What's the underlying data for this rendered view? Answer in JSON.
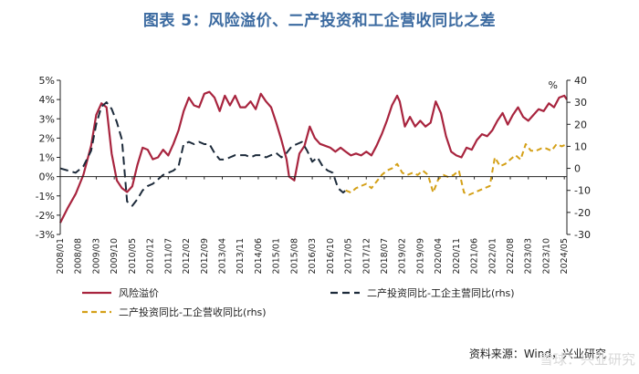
{
  "title": "图表 5：风险溢价、二产投资和工企营收同比之差",
  "source": "资料来源：Wind，兴业研究",
  "watermark": "雪球：兴业研究",
  "chart_data": {
    "type": "line",
    "left_ylim": [
      -3,
      5
    ],
    "left_ticks": [
      "-3%",
      "-2%",
      "-1%",
      "0%",
      "1%",
      "2%",
      "3%",
      "4%",
      "5%"
    ],
    "right_ylim": [
      -30,
      40
    ],
    "right_ticks": [
      "-30",
      "-20",
      "-10",
      "0",
      "10",
      "20",
      "30",
      "40"
    ],
    "x_tick_labels": [
      "2008/01",
      "2008/08",
      "2009/03",
      "2009/10",
      "2010/05",
      "2010/12",
      "2011/07",
      "2012/02",
      "2012/09",
      "2013/04",
      "2013/11",
      "2014/06",
      "2015/01",
      "2015/08",
      "2016/03",
      "2016/10",
      "2017/05",
      "2017/12",
      "2018/07",
      "2019/02",
      "2019/09",
      "2020/04",
      "2020/11",
      "2021/06",
      "2022/01",
      "2022/08",
      "2023/03",
      "2023/10",
      "2024/05"
    ],
    "x_start": "2008/01",
    "x_end": "2024/06",
    "annotation": "%",
    "grid": false,
    "legend": "bottom",
    "series": [
      {
        "name": "风险溢价",
        "axis": "left",
        "color": "#a8243e",
        "style": "solid",
        "points": [
          [
            "2008/01",
            -2.4
          ],
          [
            "2008/04",
            -1.6
          ],
          [
            "2008/07",
            -0.9
          ],
          [
            "2008/10",
            0.1
          ],
          [
            "2009/01",
            1.6
          ],
          [
            "2009/03",
            3.2
          ],
          [
            "2009/05",
            3.8
          ],
          [
            "2009/07",
            3.6
          ],
          [
            "2009/09",
            1.2
          ],
          [
            "2009/11",
            -0.2
          ],
          [
            "2010/01",
            -0.6
          ],
          [
            "2010/03",
            -0.8
          ],
          [
            "2010/05",
            -0.5
          ],
          [
            "2010/07",
            0.6
          ],
          [
            "2010/09",
            1.5
          ],
          [
            "2010/11",
            1.4
          ],
          [
            "2011/01",
            0.9
          ],
          [
            "2011/03",
            1.0
          ],
          [
            "2011/05",
            1.4
          ],
          [
            "2011/07",
            1.1
          ],
          [
            "2011/09",
            1.7
          ],
          [
            "2011/11",
            2.4
          ],
          [
            "2012/01",
            3.4
          ],
          [
            "2012/03",
            4.1
          ],
          [
            "2012/05",
            3.7
          ],
          [
            "2012/07",
            3.6
          ],
          [
            "2012/09",
            4.3
          ],
          [
            "2012/11",
            4.4
          ],
          [
            "2013/01",
            4.1
          ],
          [
            "2013/03",
            3.4
          ],
          [
            "2013/05",
            4.2
          ],
          [
            "2013/07",
            3.7
          ],
          [
            "2013/09",
            4.2
          ],
          [
            "2013/11",
            3.6
          ],
          [
            "2014/01",
            3.6
          ],
          [
            "2014/03",
            3.9
          ],
          [
            "2014/05",
            3.5
          ],
          [
            "2014/07",
            4.3
          ],
          [
            "2014/09",
            3.9
          ],
          [
            "2014/11",
            3.6
          ],
          [
            "2015/01",
            2.8
          ],
          [
            "2015/03",
            1.9
          ],
          [
            "2015/05",
            0.9
          ],
          [
            "2015/06",
            0.0
          ],
          [
            "2015/08",
            -0.2
          ],
          [
            "2015/10",
            1.2
          ],
          [
            "2015/12",
            1.6
          ],
          [
            "2016/02",
            2.6
          ],
          [
            "2016/04",
            2.0
          ],
          [
            "2016/06",
            1.7
          ],
          [
            "2016/08",
            1.6
          ],
          [
            "2016/10",
            1.5
          ],
          [
            "2016/12",
            1.3
          ],
          [
            "2017/02",
            1.5
          ],
          [
            "2017/04",
            1.3
          ],
          [
            "2017/06",
            1.1
          ],
          [
            "2017/08",
            1.2
          ],
          [
            "2017/10",
            1.1
          ],
          [
            "2017/12",
            1.3
          ],
          [
            "2018/02",
            1.1
          ],
          [
            "2018/04",
            1.6
          ],
          [
            "2018/06",
            2.2
          ],
          [
            "2018/08",
            2.9
          ],
          [
            "2018/10",
            3.7
          ],
          [
            "2018/12",
            4.2
          ],
          [
            "2019/01",
            3.9
          ],
          [
            "2019/03",
            2.6
          ],
          [
            "2019/05",
            3.1
          ],
          [
            "2019/07",
            2.6
          ],
          [
            "2019/09",
            2.9
          ],
          [
            "2019/11",
            2.6
          ],
          [
            "2020/01",
            2.8
          ],
          [
            "2020/03",
            3.9
          ],
          [
            "2020/05",
            3.3
          ],
          [
            "2020/07",
            2.1
          ],
          [
            "2020/09",
            1.3
          ],
          [
            "2020/11",
            1.1
          ],
          [
            "2021/01",
            1.0
          ],
          [
            "2021/03",
            1.5
          ],
          [
            "2021/05",
            1.4
          ],
          [
            "2021/07",
            1.9
          ],
          [
            "2021/09",
            2.2
          ],
          [
            "2021/11",
            2.1
          ],
          [
            "2022/01",
            2.4
          ],
          [
            "2022/03",
            2.9
          ],
          [
            "2022/05",
            3.3
          ],
          [
            "2022/07",
            2.7
          ],
          [
            "2022/09",
            3.2
          ],
          [
            "2022/11",
            3.6
          ],
          [
            "2023/01",
            3.1
          ],
          [
            "2023/03",
            2.9
          ],
          [
            "2023/05",
            3.2
          ],
          [
            "2023/07",
            3.5
          ],
          [
            "2023/09",
            3.4
          ],
          [
            "2023/11",
            3.8
          ],
          [
            "2024/01",
            3.6
          ],
          [
            "2024/03",
            4.1
          ],
          [
            "2024/05",
            4.2
          ],
          [
            "2024/06",
            4.0
          ]
        ]
      },
      {
        "name": "二产投资同比-工企主营同比(rhs)",
        "axis": "right",
        "color": "#1c2a3a",
        "style": "dashed",
        "points": [
          [
            "2008/01",
            0
          ],
          [
            "2008/04",
            -1
          ],
          [
            "2008/07",
            -2
          ],
          [
            "2008/10",
            1
          ],
          [
            "2009/01",
            8
          ],
          [
            "2009/03",
            20
          ],
          [
            "2009/05",
            28
          ],
          [
            "2009/07",
            30
          ],
          [
            "2009/09",
            27
          ],
          [
            "2009/11",
            21
          ],
          [
            "2010/01",
            13
          ],
          [
            "2010/03",
            -15
          ],
          [
            "2010/05",
            -17
          ],
          [
            "2010/07",
            -14
          ],
          [
            "2010/09",
            -10
          ],
          [
            "2010/11",
            -8
          ],
          [
            "2011/01",
            -7
          ],
          [
            "2011/03",
            -5
          ],
          [
            "2011/05",
            -3
          ],
          [
            "2011/07",
            -2
          ],
          [
            "2011/09",
            -1
          ],
          [
            "2011/11",
            1
          ],
          [
            "2012/01",
            11
          ],
          [
            "2012/03",
            12
          ],
          [
            "2012/05",
            11
          ],
          [
            "2012/07",
            12
          ],
          [
            "2012/09",
            11
          ],
          [
            "2012/11",
            11
          ],
          [
            "2013/01",
            7
          ],
          [
            "2013/03",
            4
          ],
          [
            "2013/05",
            4
          ],
          [
            "2013/07",
            5
          ],
          [
            "2013/09",
            6
          ],
          [
            "2013/11",
            6
          ],
          [
            "2014/01",
            6
          ],
          [
            "2014/03",
            5
          ],
          [
            "2014/05",
            6
          ],
          [
            "2014/07",
            6
          ],
          [
            "2014/09",
            5
          ],
          [
            "2014/11",
            6
          ],
          [
            "2015/01",
            7
          ],
          [
            "2015/03",
            5
          ],
          [
            "2015/05",
            7
          ],
          [
            "2015/07",
            10
          ],
          [
            "2015/09",
            11
          ],
          [
            "2015/11",
            12
          ],
          [
            "2016/01",
            8
          ],
          [
            "2016/03",
            3
          ],
          [
            "2016/05",
            5
          ],
          [
            "2016/07",
            1
          ],
          [
            "2016/09",
            -1
          ],
          [
            "2016/11",
            -2
          ],
          [
            "2017/01",
            -9
          ],
          [
            "2017/03",
            -11
          ],
          [
            "2017/04",
            -10
          ]
        ]
      },
      {
        "name": "二产投资同比-工企营收同比(rhs)",
        "axis": "right",
        "color": "#d4a017",
        "style": "dashed",
        "points": [
          [
            "2017/04",
            -10
          ],
          [
            "2017/06",
            -11
          ],
          [
            "2017/08",
            -9
          ],
          [
            "2017/10",
            -8
          ],
          [
            "2017/12",
            -7
          ],
          [
            "2018/02",
            -9
          ],
          [
            "2018/04",
            -6
          ],
          [
            "2018/06",
            -3
          ],
          [
            "2018/08",
            -1
          ],
          [
            "2018/10",
            0
          ],
          [
            "2018/12",
            2
          ],
          [
            "2019/02",
            -2
          ],
          [
            "2019/04",
            -3
          ],
          [
            "2019/06",
            -2
          ],
          [
            "2019/08",
            -3
          ],
          [
            "2019/10",
            -1
          ],
          [
            "2019/12",
            -3
          ],
          [
            "2020/02",
            -11
          ],
          [
            "2020/04",
            -5
          ],
          [
            "2020/06",
            -3
          ],
          [
            "2020/08",
            -4
          ],
          [
            "2020/10",
            -3
          ],
          [
            "2020/12",
            -1
          ],
          [
            "2021/02",
            -11
          ],
          [
            "2021/04",
            -12
          ],
          [
            "2021/06",
            -11
          ],
          [
            "2021/08",
            -10
          ],
          [
            "2021/10",
            -9
          ],
          [
            "2021/12",
            -8
          ],
          [
            "2022/02",
            5
          ],
          [
            "2022/04",
            1
          ],
          [
            "2022/06",
            2
          ],
          [
            "2022/08",
            4
          ],
          [
            "2022/10",
            6
          ],
          [
            "2022/12",
            4
          ],
          [
            "2023/02",
            11
          ],
          [
            "2023/04",
            8
          ],
          [
            "2023/06",
            8
          ],
          [
            "2023/08",
            9
          ],
          [
            "2023/10",
            9
          ],
          [
            "2023/12",
            8
          ],
          [
            "2024/02",
            11
          ],
          [
            "2024/04",
            10
          ],
          [
            "2024/06",
            11
          ]
        ]
      }
    ]
  }
}
